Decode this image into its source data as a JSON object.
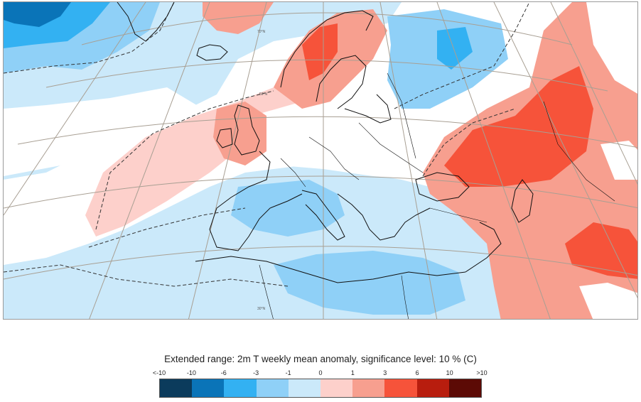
{
  "legend": {
    "title": "Extended range: 2m T weekly mean anomaly, significance level: 10 % (C)",
    "tick_labels": [
      "<-10",
      "-10",
      "-6",
      "-3",
      "-1",
      "0",
      "1",
      "3",
      "6",
      "10",
      ">10"
    ],
    "colors": [
      "#0b3b5c",
      "#0a74b8",
      "#33b1f2",
      "#8fd0f7",
      "#cbe9fa",
      "#fdd0cb",
      "#f79f8f",
      "#f6533a",
      "#b81d0e",
      "#5c0a05"
    ]
  },
  "map": {
    "gridline_labels": [
      "70°N",
      "50°N",
      "30°N"
    ],
    "colors": {
      "land_outline": "#111111",
      "gridline": "#a89f93",
      "significance_contour": "#333333"
    }
  }
}
